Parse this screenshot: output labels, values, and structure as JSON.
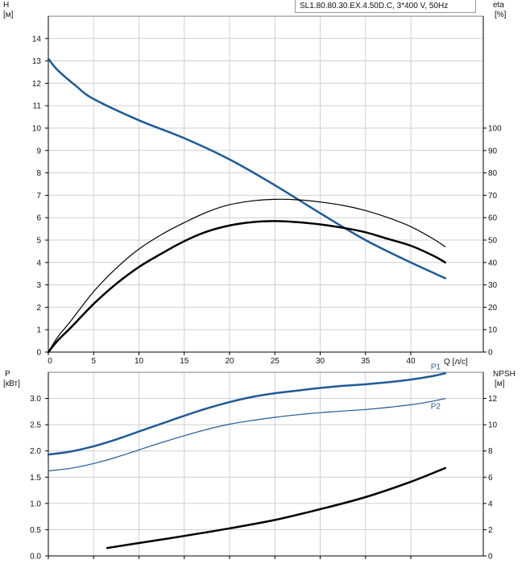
{
  "title": "SL1.80.80.30.EX.4.50D.C, 3*400 V, 50Hz",
  "colors": {
    "accent": "#1f5a96",
    "curve_dark": "#000000",
    "grid": "#cfcfcf"
  },
  "chart_data": [
    {
      "type": "line",
      "panel": "top",
      "y_axis_title": [
        "H",
        "[м]"
      ],
      "y2_axis_title": [
        "eta",
        "[%]"
      ],
      "x_axis_label": "Q [л/с]",
      "xlim": [
        0,
        48
      ],
      "ylim": [
        0,
        15
      ],
      "y2lim": [
        0,
        150
      ],
      "x_ticks": [
        0,
        5,
        10,
        15,
        20,
        25,
        30,
        35,
        40
      ],
      "y_ticks": [
        0,
        1,
        2,
        3,
        4,
        5,
        6,
        7,
        8,
        9,
        10,
        11,
        12,
        13,
        14
      ],
      "y2_ticks": [
        0,
        10,
        20,
        30,
        40,
        50,
        60,
        70,
        80,
        90,
        100
      ],
      "grid": true,
      "series": [
        {
          "axis": "left",
          "color": "#1f5a96",
          "width": 2.5,
          "x": [
            0,
            1,
            3,
            5,
            10,
            15,
            20,
            25,
            30,
            35,
            40,
            43.8
          ],
          "y": [
            13.1,
            12.6,
            11.9,
            11.3,
            10.35,
            9.55,
            8.6,
            7.45,
            6.2,
            5.0,
            4.0,
            3.3
          ]
        },
        {
          "axis": "right",
          "color": "#000000",
          "width": 1.2,
          "x": [
            0,
            1,
            2.5,
            5,
            7.5,
            10,
            12.5,
            15,
            17.5,
            20,
            22.5,
            25,
            27.5,
            30,
            32.5,
            35,
            37.5,
            40,
            42.5,
            43.8
          ],
          "y": [
            0,
            6.5,
            14,
            27,
            37.5,
            46,
            52.5,
            57.8,
            62.5,
            65.8,
            67.5,
            68.2,
            68.0,
            67.0,
            65.5,
            63.2,
            60.0,
            56.0,
            50.5,
            47.0
          ]
        },
        {
          "axis": "right",
          "color": "#000000",
          "width": 2.5,
          "x": [
            0,
            1,
            2.5,
            5,
            7.5,
            10,
            12.5,
            15,
            17.5,
            20,
            22.5,
            25,
            27.5,
            30,
            32.5,
            35,
            37.5,
            40,
            42.5,
            43.8
          ],
          "y": [
            0,
            5,
            11,
            21.5,
            30.5,
            38,
            44,
            49.5,
            53.8,
            56.5,
            58.0,
            58.5,
            58.0,
            57.0,
            55.5,
            53.5,
            50.5,
            47.5,
            43.0,
            40.0
          ]
        }
      ]
    },
    {
      "type": "line",
      "panel": "bottom",
      "y_axis_title": [
        "P",
        "[кВт]"
      ],
      "y2_axis_title": [
        "NPSH",
        "[м]"
      ],
      "xlim": [
        0,
        48
      ],
      "ylim": [
        0,
        3.5
      ],
      "y2lim": [
        0,
        14
      ],
      "x_ticks": [
        0,
        5,
        10,
        15,
        20,
        25,
        30,
        35,
        40
      ],
      "y_ticks": [
        "0.0",
        "0.5",
        "1.0",
        "1.5",
        "2.0",
        "2.5",
        "3.0"
      ],
      "y2_ticks": [
        0,
        2,
        4,
        6,
        8,
        10,
        12
      ],
      "grid": true,
      "series": [
        {
          "name": "P1",
          "axis": "left",
          "color": "#1f5a96",
          "width": 2.5,
          "x": [
            0,
            2.5,
            5,
            7.5,
            10,
            12.5,
            15,
            17.5,
            20,
            22.5,
            25,
            27.5,
            30,
            32.5,
            35,
            37.5,
            40,
            42.5,
            43.8
          ],
          "y": [
            1.93,
            1.99,
            2.09,
            2.22,
            2.37,
            2.52,
            2.67,
            2.81,
            2.93,
            3.03,
            3.1,
            3.15,
            3.2,
            3.24,
            3.27,
            3.31,
            3.36,
            3.43,
            3.48
          ]
        },
        {
          "name": "P2",
          "axis": "left",
          "color": "#1f5a96",
          "width": 1.2,
          "x": [
            0,
            2.5,
            5,
            7.5,
            10,
            12.5,
            15,
            17.5,
            20,
            22.5,
            25,
            27.5,
            30,
            32.5,
            35,
            37.5,
            40,
            42.5,
            43.8
          ],
          "y": [
            1.62,
            1.67,
            1.76,
            1.88,
            2.02,
            2.16,
            2.29,
            2.41,
            2.51,
            2.58,
            2.64,
            2.69,
            2.73,
            2.76,
            2.79,
            2.83,
            2.88,
            2.95,
            3.0
          ]
        },
        {
          "axis": "right",
          "color": "#000000",
          "width": 2.5,
          "x": [
            6.5,
            10,
            15,
            20,
            25,
            30,
            35,
            40,
            43.8
          ],
          "y": [
            0.6,
            0.98,
            1.52,
            2.1,
            2.74,
            3.56,
            4.48,
            5.65,
            6.7
          ]
        }
      ]
    }
  ]
}
